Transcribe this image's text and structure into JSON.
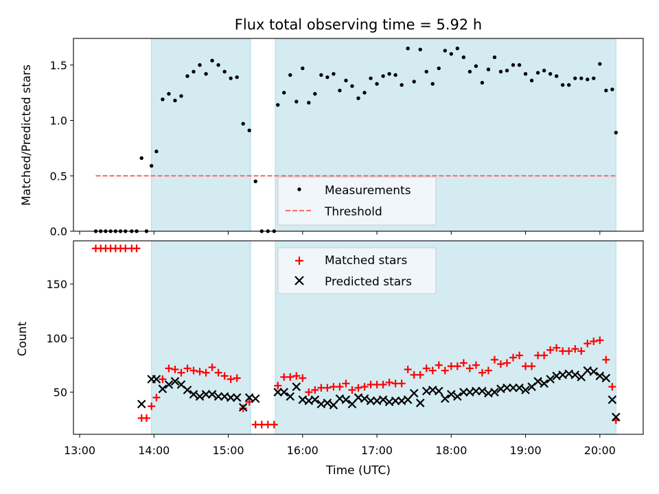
{
  "chart_data": [
    {
      "type": "scatter",
      "title": "Flux total observing time = 5.92 h",
      "xlabel": "",
      "ylabel": "Matched/Predicted stars",
      "ylim": [
        0,
        1.74
      ],
      "yticks": [
        0.0,
        0.5,
        1.0,
        1.5
      ],
      "ytick_labels": [
        "0.0",
        "0.5",
        "1.0",
        "1.5"
      ],
      "shaded_intervals": [
        [
          "13:58",
          "15:18"
        ],
        [
          "15:38",
          "20:13"
        ]
      ],
      "shade_color": "#add8e6",
      "legend_position": "lower-center",
      "series": [
        {
          "name": "Measurements",
          "marker": "dot",
          "color": "#000000",
          "points": [
            [
              "13:13",
              0.0
            ],
            [
              "13:17",
              0.0
            ],
            [
              "13:21",
              0.0
            ],
            [
              "13:25",
              0.0
            ],
            [
              "13:29",
              0.0
            ],
            [
              "13:33",
              0.0
            ],
            [
              "13:37",
              0.0
            ],
            [
              "13:42",
              0.0
            ],
            [
              "13:46",
              0.0
            ],
            [
              "13:50",
              0.66
            ],
            [
              "13:54",
              0.0
            ],
            [
              "13:58",
              0.59
            ],
            [
              "14:02",
              0.72
            ],
            [
              "14:07",
              1.19
            ],
            [
              "14:12",
              1.24
            ],
            [
              "14:17",
              1.18
            ],
            [
              "14:22",
              1.22
            ],
            [
              "14:27",
              1.4
            ],
            [
              "14:32",
              1.44
            ],
            [
              "14:37",
              1.5
            ],
            [
              "14:42",
              1.42
            ],
            [
              "14:47",
              1.54
            ],
            [
              "14:52",
              1.5
            ],
            [
              "14:57",
              1.44
            ],
            [
              "15:02",
              1.38
            ],
            [
              "15:07",
              1.39
            ],
            [
              "15:12",
              0.97
            ],
            [
              "15:17",
              0.91
            ],
            [
              "15:22",
              0.45
            ],
            [
              "15:27",
              0.0
            ],
            [
              "15:32",
              0.0
            ],
            [
              "15:37",
              0.0
            ],
            [
              "15:40",
              1.14
            ],
            [
              "15:45",
              1.25
            ],
            [
              "15:50",
              1.41
            ],
            [
              "15:55",
              1.17
            ],
            [
              "16:00",
              1.47
            ],
            [
              "16:05",
              1.16
            ],
            [
              "16:10",
              1.24
            ],
            [
              "16:15",
              1.41
            ],
            [
              "16:20",
              1.39
            ],
            [
              "16:25",
              1.42
            ],
            [
              "16:30",
              1.27
            ],
            [
              "16:35",
              1.36
            ],
            [
              "16:40",
              1.31
            ],
            [
              "16:45",
              1.2
            ],
            [
              "16:50",
              1.25
            ],
            [
              "16:55",
              1.38
            ],
            [
              "17:00",
              1.33
            ],
            [
              "17:05",
              1.4
            ],
            [
              "17:10",
              1.42
            ],
            [
              "17:15",
              1.41
            ],
            [
              "17:20",
              1.32
            ],
            [
              "17:25",
              1.65
            ],
            [
              "17:30",
              1.35
            ],
            [
              "17:35",
              1.64
            ],
            [
              "17:40",
              1.44
            ],
            [
              "17:45",
              1.33
            ],
            [
              "17:50",
              1.47
            ],
            [
              "17:55",
              1.63
            ],
            [
              "18:00",
              1.6
            ],
            [
              "18:05",
              1.65
            ],
            [
              "18:10",
              1.57
            ],
            [
              "18:15",
              1.44
            ],
            [
              "18:20",
              1.49
            ],
            [
              "18:25",
              1.34
            ],
            [
              "18:30",
              1.46
            ],
            [
              "18:35",
              1.57
            ],
            [
              "18:40",
              1.44
            ],
            [
              "18:45",
              1.45
            ],
            [
              "18:50",
              1.5
            ],
            [
              "18:55",
              1.5
            ],
            [
              "19:00",
              1.42
            ],
            [
              "19:05",
              1.36
            ],
            [
              "19:10",
              1.43
            ],
            [
              "19:15",
              1.45
            ],
            [
              "19:20",
              1.42
            ],
            [
              "19:25",
              1.4
            ],
            [
              "19:30",
              1.32
            ],
            [
              "19:35",
              1.32
            ],
            [
              "19:40",
              1.38
            ],
            [
              "19:45",
              1.38
            ],
            [
              "19:50",
              1.37
            ],
            [
              "19:55",
              1.38
            ],
            [
              "20:00",
              1.51
            ],
            [
              "20:05",
              1.27
            ],
            [
              "20:10",
              1.28
            ],
            [
              "20:13",
              0.89
            ]
          ]
        },
        {
          "name": "Threshold",
          "kind": "hline",
          "style": "dashed",
          "color": "#ff7070",
          "y": 0.5,
          "x_range": [
            "13:13",
            "20:13"
          ]
        }
      ]
    },
    {
      "type": "scatter",
      "title": "",
      "xlabel": "Time (UTC)",
      "ylabel": "Count",
      "ylim": [
        11,
        190
      ],
      "yticks": [
        50,
        100,
        150
      ],
      "ytick_labels": [
        "50",
        "100",
        "150"
      ],
      "xlim": [
        "12:55",
        "20:35"
      ],
      "xticks": [
        "13:00",
        "14:00",
        "15:00",
        "16:00",
        "17:00",
        "18:00",
        "19:00",
        "20:00"
      ],
      "shaded_intervals": [
        [
          "13:58",
          "15:18"
        ],
        [
          "15:38",
          "20:13"
        ]
      ],
      "shade_color": "#add8e6",
      "legend_position": "upper-center",
      "series": [
        {
          "name": "Matched stars",
          "marker": "plus",
          "color": "#ff0000",
          "points": [
            [
              "13:13",
              183
            ],
            [
              "13:17",
              183
            ],
            [
              "13:21",
              183
            ],
            [
              "13:25",
              183
            ],
            [
              "13:29",
              183
            ],
            [
              "13:33",
              183
            ],
            [
              "13:37",
              183
            ],
            [
              "13:42",
              183
            ],
            [
              "13:46",
              183
            ],
            [
              "13:50",
              26
            ],
            [
              "13:54",
              26
            ],
            [
              "13:58",
              37
            ],
            [
              "14:02",
              45
            ],
            [
              "14:07",
              62
            ],
            [
              "14:12",
              72
            ],
            [
              "14:17",
              71
            ],
            [
              "14:22",
              68
            ],
            [
              "14:27",
              72
            ],
            [
              "14:32",
              70
            ],
            [
              "14:37",
              69
            ],
            [
              "14:42",
              68
            ],
            [
              "14:47",
              73
            ],
            [
              "14:52",
              68
            ],
            [
              "14:57",
              65
            ],
            [
              "15:02",
              62
            ],
            [
              "15:07",
              63
            ],
            [
              "15:12",
              35
            ],
            [
              "15:17",
              41
            ],
            [
              "15:22",
              20
            ],
            [
              "15:27",
              20
            ],
            [
              "15:32",
              20
            ],
            [
              "15:37",
              20
            ],
            [
              "15:40",
              56
            ],
            [
              "15:45",
              64
            ],
            [
              "15:50",
              64
            ],
            [
              "15:55",
              65
            ],
            [
              "16:00",
              63
            ],
            [
              "16:05",
              50
            ],
            [
              "16:10",
              52
            ],
            [
              "16:15",
              54
            ],
            [
              "16:20",
              54
            ],
            [
              "16:25",
              55
            ],
            [
              "16:30",
              55
            ],
            [
              "16:35",
              58
            ],
            [
              "16:40",
              52
            ],
            [
              "16:45",
              54
            ],
            [
              "16:50",
              55
            ],
            [
              "16:55",
              57
            ],
            [
              "17:00",
              57
            ],
            [
              "17:05",
              57
            ],
            [
              "17:10",
              59
            ],
            [
              "17:15",
              58
            ],
            [
              "17:20",
              58
            ],
            [
              "17:25",
              71
            ],
            [
              "17:30",
              66
            ],
            [
              "17:35",
              66
            ],
            [
              "17:40",
              72
            ],
            [
              "17:45",
              70
            ],
            [
              "17:50",
              75
            ],
            [
              "17:55",
              70
            ],
            [
              "18:00",
              74
            ],
            [
              "18:05",
              74
            ],
            [
              "18:10",
              77
            ],
            [
              "18:15",
              72
            ],
            [
              "18:20",
              75
            ],
            [
              "18:25",
              68
            ],
            [
              "18:30",
              70
            ],
            [
              "18:35",
              80
            ],
            [
              "18:40",
              76
            ],
            [
              "18:45",
              77
            ],
            [
              "18:50",
              82
            ],
            [
              "18:55",
              84
            ],
            [
              "19:00",
              74
            ],
            [
              "19:05",
              74
            ],
            [
              "19:10",
              84
            ],
            [
              "19:15",
              84
            ],
            [
              "19:20",
              89
            ],
            [
              "19:25",
              91
            ],
            [
              "19:30",
              88
            ],
            [
              "19:35",
              88
            ],
            [
              "19:40",
              90
            ],
            [
              "19:45",
              88
            ],
            [
              "19:50",
              95
            ],
            [
              "19:55",
              97
            ],
            [
              "20:00",
              98
            ],
            [
              "20:05",
              80
            ],
            [
              "20:10",
              55
            ],
            [
              "20:13",
              24
            ]
          ]
        },
        {
          "name": "Predicted stars",
          "marker": "x",
          "color": "#000000",
          "points": [
            [
              "13:50",
              39
            ],
            [
              "13:58",
              62
            ],
            [
              "14:02",
              62
            ],
            [
              "14:07",
              53
            ],
            [
              "14:12",
              57
            ],
            [
              "14:17",
              60
            ],
            [
              "14:22",
              57
            ],
            [
              "14:27",
              52
            ],
            [
              "14:32",
              48
            ],
            [
              "14:37",
              46
            ],
            [
              "14:42",
              48
            ],
            [
              "14:47",
              48
            ],
            [
              "14:52",
              46
            ],
            [
              "14:57",
              46
            ],
            [
              "15:02",
              45
            ],
            [
              "15:07",
              45
            ],
            [
              "15:12",
              36
            ],
            [
              "15:17",
              45
            ],
            [
              "15:22",
              44
            ],
            [
              "15:40",
              50
            ],
            [
              "15:45",
              50
            ],
            [
              "15:50",
              46
            ],
            [
              "15:55",
              55
            ],
            [
              "16:00",
              43
            ],
            [
              "16:05",
              42
            ],
            [
              "16:10",
              43
            ],
            [
              "16:15",
              39
            ],
            [
              "16:20",
              40
            ],
            [
              "16:25",
              38
            ],
            [
              "16:30",
              44
            ],
            [
              "16:35",
              43
            ],
            [
              "16:40",
              39
            ],
            [
              "16:45",
              45
            ],
            [
              "16:50",
              44
            ],
            [
              "16:55",
              42
            ],
            [
              "17:00",
              42
            ],
            [
              "17:05",
              43
            ],
            [
              "17:10",
              41
            ],
            [
              "17:15",
              42
            ],
            [
              "17:20",
              42
            ],
            [
              "17:25",
              43
            ],
            [
              "17:30",
              49
            ],
            [
              "17:35",
              40
            ],
            [
              "17:40",
              51
            ],
            [
              "17:45",
              52
            ],
            [
              "17:50",
              51
            ],
            [
              "17:55",
              44
            ],
            [
              "18:00",
              48
            ],
            [
              "18:05",
              46
            ],
            [
              "18:10",
              50
            ],
            [
              "18:15",
              50
            ],
            [
              "18:20",
              51
            ],
            [
              "18:25",
              51
            ],
            [
              "18:30",
              49
            ],
            [
              "18:35",
              50
            ],
            [
              "18:40",
              53
            ],
            [
              "18:45",
              54
            ],
            [
              "18:50",
              54
            ],
            [
              "18:55",
              54
            ],
            [
              "19:00",
              52
            ],
            [
              "19:05",
              55
            ],
            [
              "19:10",
              60
            ],
            [
              "19:15",
              58
            ],
            [
              "19:20",
              62
            ],
            [
              "19:25",
              65
            ],
            [
              "19:30",
              66
            ],
            [
              "19:35",
              67
            ],
            [
              "19:40",
              66
            ],
            [
              "19:45",
              64
            ],
            [
              "19:50",
              70
            ],
            [
              "19:55",
              69
            ],
            [
              "20:00",
              65
            ],
            [
              "20:05",
              63
            ],
            [
              "20:10",
              43
            ],
            [
              "20:13",
              27
            ]
          ]
        }
      ]
    }
  ]
}
